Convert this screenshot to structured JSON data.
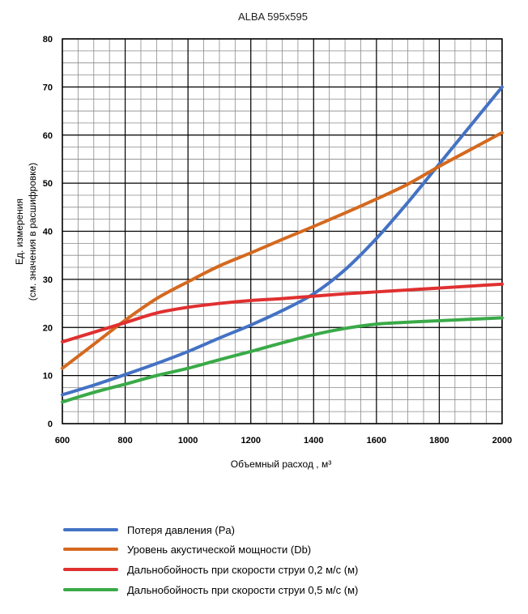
{
  "chart_data": {
    "type": "line",
    "title": "ALBA 595x595",
    "xlabel": "Объемный расход , м³",
    "ylabel_line1": "Ед. измерения",
    "ylabel_line2": "(см. значения в расшифровке)",
    "xlim": [
      600,
      2000
    ],
    "ylim": [
      0,
      80
    ],
    "xticks": [
      600,
      800,
      1000,
      1200,
      1400,
      1600,
      1800,
      2000
    ],
    "yticks": [
      0,
      10,
      20,
      30,
      40,
      50,
      60,
      70,
      80
    ],
    "minor_x_step": 50,
    "minor_y_step": 2.5,
    "grid": true,
    "series": [
      {
        "name": "Потеря давления (Pa)",
        "color": "#4472c4",
        "x": [
          600,
          700,
          800,
          900,
          1000,
          1100,
          1200,
          1300,
          1400,
          1500,
          1600,
          1700,
          1800,
          1900,
          2000
        ],
        "y": [
          6,
          8,
          10.2,
          12.5,
          15,
          17.8,
          20.5,
          23.5,
          27,
          32,
          38.5,
          46,
          54,
          62,
          70
        ]
      },
      {
        "name": "Уровень акустической мощности (Db)",
        "color": "#d4691f",
        "x": [
          600,
          700,
          800,
          900,
          1000,
          1100,
          1200,
          1300,
          1400,
          1500,
          1600,
          1700,
          1800,
          1900,
          2000
        ],
        "y": [
          11.5,
          16.5,
          21.5,
          26,
          29.5,
          32.8,
          35.5,
          38.3,
          41,
          43.8,
          46.7,
          49.8,
          53.5,
          57,
          60.5
        ]
      },
      {
        "name": "Дальнобойность при скорости струи 0,2 м/с (м)",
        "color": "#e03030",
        "x": [
          600,
          700,
          800,
          900,
          1000,
          1100,
          1200,
          1300,
          1400,
          1500,
          1600,
          1700,
          1800,
          1900,
          2000
        ],
        "y": [
          17,
          19,
          21,
          23,
          24.2,
          25,
          25.6,
          26,
          26.5,
          27,
          27.4,
          27.8,
          28.2,
          28.6,
          29
        ]
      },
      {
        "name": "Дальнобойность при скорости струи 0,5 м/с (м)",
        "color": "#3aaa48",
        "x": [
          600,
          700,
          800,
          900,
          1000,
          1100,
          1200,
          1300,
          1400,
          1500,
          1600,
          1700,
          1800,
          1900,
          2000
        ],
        "y": [
          4.5,
          6.5,
          8.2,
          10,
          11.5,
          13.3,
          15,
          16.8,
          18.5,
          19.8,
          20.7,
          21.1,
          21.4,
          21.7,
          22
        ]
      }
    ]
  }
}
